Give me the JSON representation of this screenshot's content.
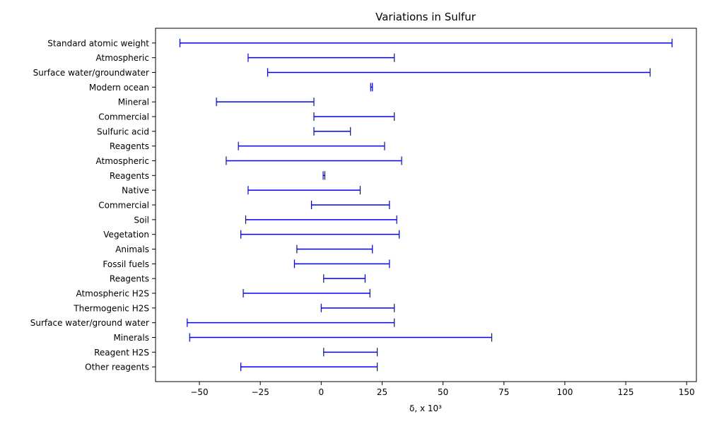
{
  "chart_data": {
    "type": "range",
    "title": "Variations  in Sulfur",
    "xlabel": "δ, x 10³",
    "ylabel": "",
    "xlim": [
      -68,
      154
    ],
    "xticks": [
      -50,
      -25,
      0,
      25,
      50,
      75,
      100,
      125,
      150
    ],
    "xtick_labels": [
      "−50",
      "−25",
      "0",
      "25",
      "50",
      "75",
      "100",
      "125",
      "150"
    ],
    "grid": false,
    "color": "#0000ff",
    "categories": [
      "Standard atomic weight",
      "Atmospheric",
      "Surface water/groundwater",
      "Modern ocean",
      "Mineral",
      "Commercial ",
      "Sulfuric acid",
      "Reagents ",
      "Atmospheric",
      "Reagents ",
      "Native ",
      "Commercial",
      "Soil ",
      "Vegetation ",
      "Animals ",
      "Fossil fuels ",
      "Reagents  ",
      "Atmospheric H2S",
      "Thermogenic H2S",
      "Surface water/ground water",
      "Minerals ",
      "Reagent H2S",
      "Other reagents"
    ],
    "ranges": [
      [
        -58,
        144
      ],
      [
        -30,
        30
      ],
      [
        -22,
        135
      ],
      [
        20.3,
        21
      ],
      [
        -43,
        -3
      ],
      [
        -3,
        30
      ],
      [
        -3,
        12
      ],
      [
        -34,
        26
      ],
      [
        -39,
        33
      ],
      [
        0.8,
        1.5
      ],
      [
        -30,
        16
      ],
      [
        -4,
        28
      ],
      [
        -31,
        31
      ],
      [
        -33,
        32
      ],
      [
        -10,
        21
      ],
      [
        -11,
        28
      ],
      [
        1,
        18
      ],
      [
        -32,
        20
      ],
      [
        0,
        30
      ],
      [
        -55,
        30
      ],
      [
        -54,
        70
      ],
      [
        1,
        23
      ],
      [
        -33,
        23
      ]
    ]
  }
}
